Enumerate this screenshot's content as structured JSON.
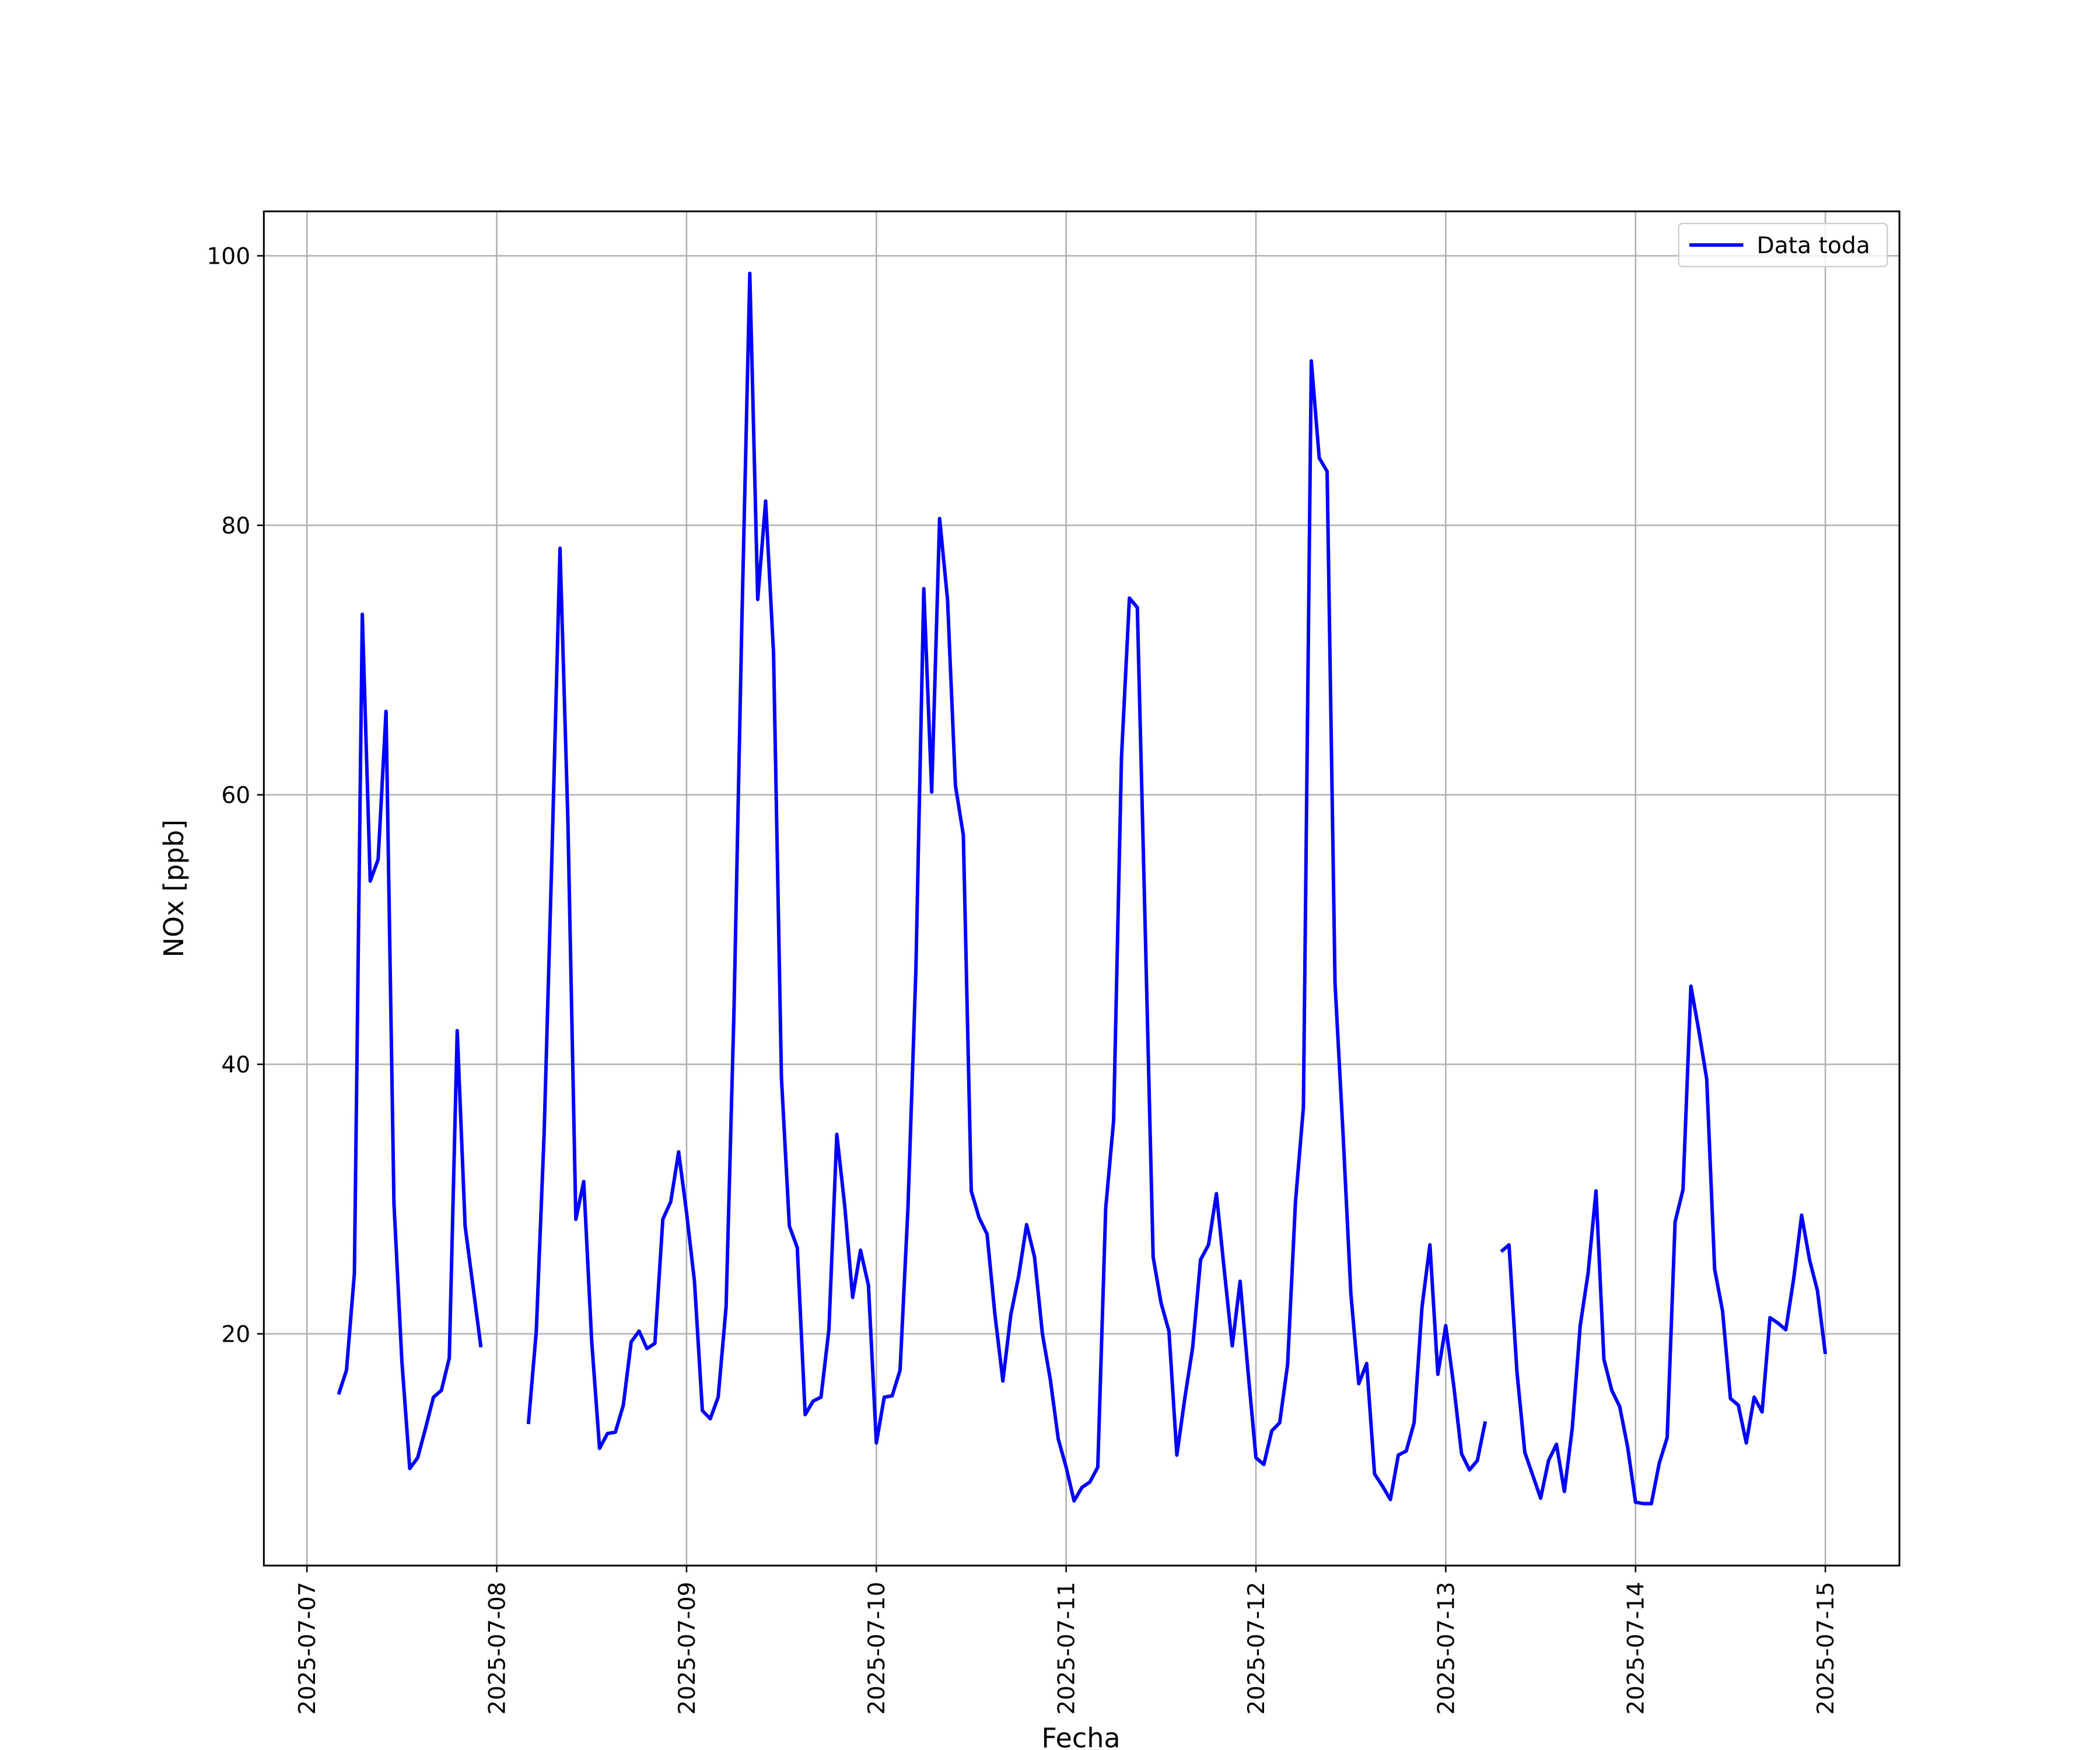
{
  "chart_data": {
    "type": "line",
    "xlabel": "Fecha",
    "ylabel": "NOx [ppb]",
    "x": [
      "2025-07-07 04:00",
      "2025-07-07 05:00",
      "2025-07-07 06:00",
      "2025-07-07 07:00",
      "2025-07-07 08:00",
      "2025-07-07 09:00",
      "2025-07-07 10:00",
      "2025-07-07 11:00",
      "2025-07-07 12:00",
      "2025-07-07 13:00",
      "2025-07-07 14:00",
      "2025-07-07 15:00",
      "2025-07-07 16:00",
      "2025-07-07 17:00",
      "2025-07-07 18:00",
      "2025-07-07 19:00",
      "2025-07-07 20:00",
      "2025-07-07 21:00",
      "2025-07-07 22:00",
      "2025-07-07 23:00",
      "2025-07-08 00:00",
      "2025-07-08 01:00",
      "2025-07-08 02:00",
      "2025-07-08 03:00",
      "2025-07-08 04:00",
      "2025-07-08 05:00",
      "2025-07-08 06:00",
      "2025-07-08 07:00",
      "2025-07-08 08:00",
      "2025-07-08 09:00",
      "2025-07-08 10:00",
      "2025-07-08 11:00",
      "2025-07-08 12:00",
      "2025-07-08 13:00",
      "2025-07-08 14:00",
      "2025-07-08 15:00",
      "2025-07-08 16:00",
      "2025-07-08 17:00",
      "2025-07-08 18:00",
      "2025-07-08 19:00",
      "2025-07-08 20:00",
      "2025-07-08 21:00",
      "2025-07-08 22:00",
      "2025-07-08 23:00",
      "2025-07-09 00:00",
      "2025-07-09 01:00",
      "2025-07-09 02:00",
      "2025-07-09 03:00",
      "2025-07-09 04:00",
      "2025-07-09 05:00",
      "2025-07-09 06:00",
      "2025-07-09 07:00",
      "2025-07-09 08:00",
      "2025-07-09 09:00",
      "2025-07-09 10:00",
      "2025-07-09 11:00",
      "2025-07-09 12:00",
      "2025-07-09 13:00",
      "2025-07-09 14:00",
      "2025-07-09 15:00",
      "2025-07-09 16:00",
      "2025-07-09 17:00",
      "2025-07-09 18:00",
      "2025-07-09 19:00",
      "2025-07-09 20:00",
      "2025-07-09 21:00",
      "2025-07-09 22:00",
      "2025-07-09 23:00",
      "2025-07-10 00:00",
      "2025-07-10 01:00",
      "2025-07-10 02:00",
      "2025-07-10 03:00",
      "2025-07-10 04:00",
      "2025-07-10 05:00",
      "2025-07-10 06:00",
      "2025-07-10 07:00",
      "2025-07-10 08:00",
      "2025-07-10 09:00",
      "2025-07-10 10:00",
      "2025-07-10 11:00",
      "2025-07-10 12:00",
      "2025-07-10 13:00",
      "2025-07-10 14:00",
      "2025-07-10 15:00",
      "2025-07-10 16:00",
      "2025-07-10 17:00",
      "2025-07-10 18:00",
      "2025-07-10 19:00",
      "2025-07-10 20:00",
      "2025-07-10 21:00",
      "2025-07-10 22:00",
      "2025-07-10 23:00",
      "2025-07-11 00:00",
      "2025-07-11 01:00",
      "2025-07-11 02:00",
      "2025-07-11 03:00",
      "2025-07-11 04:00",
      "2025-07-11 05:00",
      "2025-07-11 06:00",
      "2025-07-11 07:00",
      "2025-07-11 08:00",
      "2025-07-11 09:00",
      "2025-07-11 10:00",
      "2025-07-11 11:00",
      "2025-07-11 12:00",
      "2025-07-11 13:00",
      "2025-07-11 14:00",
      "2025-07-11 15:00",
      "2025-07-11 16:00",
      "2025-07-11 17:00",
      "2025-07-11 18:00",
      "2025-07-11 19:00",
      "2025-07-11 20:00",
      "2025-07-11 21:00",
      "2025-07-11 22:00",
      "2025-07-11 23:00",
      "2025-07-12 00:00",
      "2025-07-12 01:00",
      "2025-07-12 02:00",
      "2025-07-12 03:00",
      "2025-07-12 04:00",
      "2025-07-12 05:00",
      "2025-07-12 06:00",
      "2025-07-12 07:00",
      "2025-07-12 08:00",
      "2025-07-12 09:00",
      "2025-07-12 10:00",
      "2025-07-12 11:00",
      "2025-07-12 12:00",
      "2025-07-12 13:00",
      "2025-07-12 14:00",
      "2025-07-12 15:00",
      "2025-07-12 16:00",
      "2025-07-12 17:00",
      "2025-07-12 18:00",
      "2025-07-12 19:00",
      "2025-07-12 20:00",
      "2025-07-12 21:00",
      "2025-07-12 22:00",
      "2025-07-12 23:00",
      "2025-07-13 00:00",
      "2025-07-13 01:00",
      "2025-07-13 02:00",
      "2025-07-13 03:00",
      "2025-07-13 04:00",
      "2025-07-13 05:00",
      "2025-07-13 06:00",
      "2025-07-13 07:00",
      "2025-07-13 08:00",
      "2025-07-13 09:00",
      "2025-07-13 10:00",
      "2025-07-13 11:00",
      "2025-07-13 12:00",
      "2025-07-13 13:00",
      "2025-07-13 14:00",
      "2025-07-13 15:00",
      "2025-07-13 16:00",
      "2025-07-13 17:00",
      "2025-07-13 18:00",
      "2025-07-13 19:00",
      "2025-07-13 20:00",
      "2025-07-13 21:00",
      "2025-07-13 22:00",
      "2025-07-13 23:00",
      "2025-07-14 00:00",
      "2025-07-14 01:00",
      "2025-07-14 02:00",
      "2025-07-14 03:00",
      "2025-07-14 04:00",
      "2025-07-14 05:00",
      "2025-07-14 06:00",
      "2025-07-14 07:00",
      "2025-07-14 08:00",
      "2025-07-14 09:00",
      "2025-07-14 10:00",
      "2025-07-14 11:00",
      "2025-07-14 12:00",
      "2025-07-14 13:00",
      "2025-07-14 14:00",
      "2025-07-14 15:00",
      "2025-07-14 16:00",
      "2025-07-14 17:00",
      "2025-07-14 18:00",
      "2025-07-14 19:00",
      "2025-07-14 20:00",
      "2025-07-14 21:00",
      "2025-07-14 22:00",
      "2025-07-14 23:00",
      "2025-07-15 00:00"
    ],
    "series": [
      {
        "name": "Data toda",
        "color": "#0000ff",
        "values": [
          15.5,
          17.3,
          24.5,
          73.4,
          53.6,
          55.2,
          66.2,
          29.7,
          18.0,
          10.0,
          10.8,
          13.0,
          15.3,
          15.8,
          18.2,
          42.5,
          28.0,
          23.5,
          19.0,
          null,
          null,
          null,
          null,
          null,
          13.3,
          20.2,
          35.0,
          56.0,
          78.3,
          58.0,
          28.5,
          31.3,
          19.5,
          11.5,
          12.6,
          12.7,
          14.7,
          19.4,
          20.2,
          18.9,
          19.3,
          28.5,
          29.8,
          33.5,
          29.0,
          23.9,
          14.3,
          13.7,
          15.3,
          22.0,
          44.0,
          73.0,
          98.7,
          74.5,
          81.8,
          70.5,
          39.0,
          28.0,
          26.4,
          14.0,
          15.0,
          15.3,
          20.3,
          34.8,
          29.5,
          22.7,
          26.2,
          23.6,
          11.9,
          15.3,
          15.4,
          17.3,
          29.4,
          47.0,
          75.3,
          60.2,
          80.5,
          74.5,
          60.7,
          57.0,
          30.6,
          28.6,
          27.4,
          21.4,
          16.5,
          21.4,
          24.3,
          28.1,
          25.7,
          20.0,
          16.6,
          12.2,
          10.1,
          7.6,
          8.6,
          9.0,
          10.1,
          29.3,
          35.8,
          62.8,
          74.6,
          73.9,
          50.0,
          25.7,
          22.3,
          20.2,
          11.0,
          15.2,
          19.0,
          25.5,
          26.6,
          30.4,
          24.7,
          19.1,
          23.9,
          17.2,
          10.8,
          10.3,
          12.8,
          13.4,
          17.7,
          29.8,
          36.8,
          92.2,
          85.0,
          84.0,
          46.0,
          35.0,
          23.0,
          16.3,
          17.8,
          9.6,
          8.7,
          7.7,
          11.0,
          11.3,
          13.4,
          22.0,
          26.6,
          17.0,
          20.6,
          16.2,
          11.1,
          9.9,
          10.6,
          13.5,
          null,
          26.1,
          26.6,
          17.2,
          11.2,
          9.5,
          7.8,
          10.6,
          11.8,
          8.3,
          13.0,
          20.6,
          24.5,
          30.6,
          18.1,
          15.8,
          14.6,
          11.6,
          7.5,
          7.4,
          7.4,
          10.4,
          12.3,
          28.3,
          30.7,
          45.8,
          42.5,
          38.9,
          24.8,
          21.7,
          15.2,
          14.7,
          11.9,
          15.3,
          14.2,
          21.2,
          20.8,
          20.3,
          24.1,
          28.8,
          25.5,
          23.2,
          18.5
        ]
      }
    ],
    "xlim": [
      "2025-07-06 18:33",
      "2025-07-15 09:22"
    ],
    "xticks": [
      "2025-07-07",
      "2025-07-08",
      "2025-07-09",
      "2025-07-10",
      "2025-07-11",
      "2025-07-12",
      "2025-07-13",
      "2025-07-14",
      "2025-07-15"
    ],
    "ylim": [
      2.8,
      103.3
    ],
    "yticks": [
      20,
      40,
      60,
      80,
      100
    ],
    "grid": true,
    "legend": "upper right"
  }
}
